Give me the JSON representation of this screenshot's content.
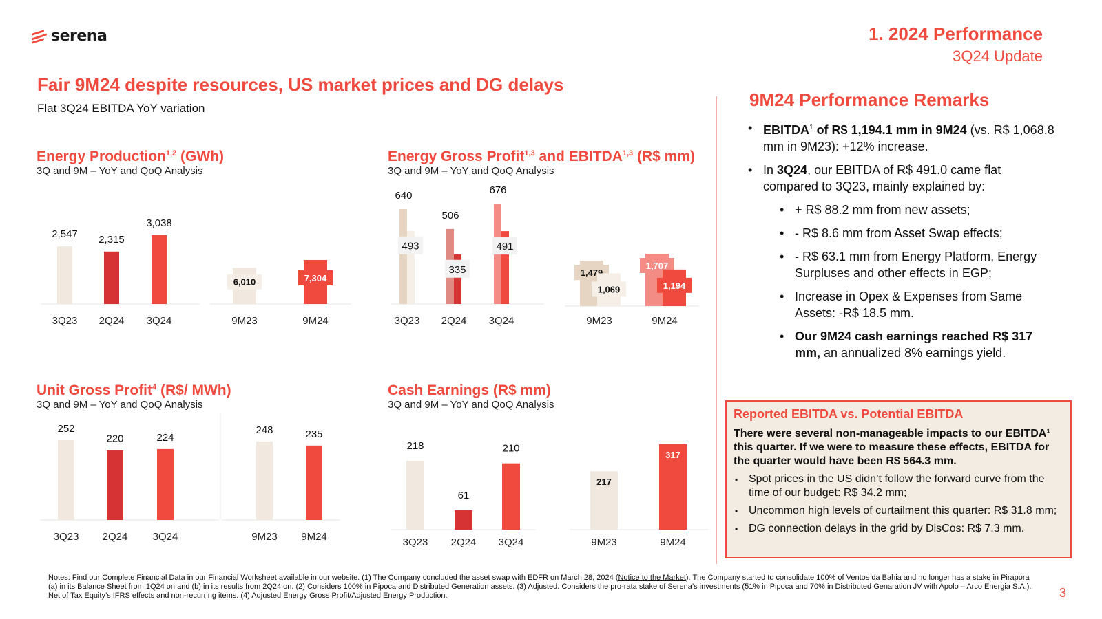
{
  "logo": {
    "text": "serena"
  },
  "section": {
    "title": "1. 2024 Performance",
    "subtitle": "3Q24 Update"
  },
  "headline": "Fair 9M24 despite resources, US market prices and DG delays",
  "subheadline": "Flat 3Q24 EBITDA YoY variation",
  "charts": {
    "energy": {
      "title": "Energy Production",
      "sup": "1,2",
      "title_tail": " (GWh)",
      "subtitle": "3Q and 9M – YoY and QoQ Analysis"
    },
    "gross": {
      "title": "Energy Gross Profit",
      "sup1": "1,3",
      "mid": " and EBITDA",
      "sup2": "1,3",
      "title_tail": " (R$ mm)",
      "subtitle": "3Q and 9M – YoY and QoQ Analysis"
    },
    "unit": {
      "title": "Unit Gross Profit",
      "sup": "4",
      "title_tail": " (R$/ MWh)",
      "subtitle": "3Q and 9M – YoY and QoQ Analysis"
    },
    "cash": {
      "title": "Cash Earnings (R$ mm)",
      "subtitle": "3Q and 9M – YoY and QoQ Analysis"
    }
  },
  "chart_data": [
    {
      "id": "energy",
      "type": "bar",
      "title": "Energy Production (GWh)",
      "groups": [
        {
          "categories": [
            "3Q23",
            "2Q24",
            "3Q24"
          ],
          "values": [
            2547,
            2315,
            3038
          ],
          "labels": [
            "2,547",
            "2,315",
            "3,038"
          ]
        },
        {
          "categories": [
            "9M23",
            "9M24"
          ],
          "values": [
            6010,
            7304
          ],
          "labels": [
            "6,010",
            "7,304"
          ]
        }
      ]
    },
    {
      "id": "gross",
      "type": "bar",
      "title": "Energy Gross Profit and EBITDA (R$ mm)",
      "series": [
        {
          "name": "Energy Gross Profit"
        },
        {
          "name": "EBITDA"
        }
      ],
      "groups": [
        {
          "categories": [
            "3Q23",
            "2Q24",
            "3Q24"
          ],
          "gross_profit": [
            640,
            506,
            676
          ],
          "ebitda": [
            493,
            335,
            491
          ],
          "gp_labels": [
            "640",
            "506",
            "676"
          ],
          "ebitda_labels": [
            "493",
            "335",
            "491"
          ]
        },
        {
          "categories": [
            "9M23",
            "9M24"
          ],
          "gross_profit": [
            1479,
            1707
          ],
          "ebitda": [
            1069,
            1194
          ],
          "gp_labels": [
            "1,479",
            "1,707"
          ],
          "ebitda_labels": [
            "1,069",
            "1,194"
          ]
        }
      ]
    },
    {
      "id": "unit",
      "type": "bar",
      "title": "Unit Gross Profit (R$/ MWh)",
      "groups": [
        {
          "categories": [
            "3Q23",
            "2Q24",
            "3Q24"
          ],
          "values": [
            252,
            220,
            224
          ]
        },
        {
          "categories": [
            "9M23",
            "9M24"
          ],
          "values": [
            248,
            235
          ]
        }
      ]
    },
    {
      "id": "cash",
      "type": "bar",
      "title": "Cash Earnings (R$ mm)",
      "groups": [
        {
          "categories": [
            "3Q23",
            "2Q24",
            "3Q24"
          ],
          "values": [
            218,
            61,
            210
          ]
        },
        {
          "categories": [
            "9M23",
            "9M24"
          ],
          "values": [
            217,
            317
          ]
        }
      ]
    }
  ],
  "colors": {
    "accent": "#f04a3e",
    "beige": "#f1e9df",
    "dark_red": "#d63434",
    "tan": "#e5d5c2",
    "pink": "#f38c85",
    "light_beige": "#f5efe7"
  },
  "remarks": {
    "title": "9M24 Performance Remarks",
    "b1_bold_a": "EBITDA",
    "b1_sup": "1",
    "b1_bold_b": " of R$ 1,194.1 mm in 9M24",
    "b1_rest": " (vs. R$ 1,068.8 mm in 9M23): +12% increase.",
    "b2_a": "In ",
    "b2_bold": "3Q24",
    "b2_rest": ", our EBITDA of R$ 491.0 came flat compared to 3Q23, mainly explained by:",
    "sub1": "+ R$ 88.2 mm from new assets;",
    "sub2": "- R$ 8.6 mm from Asset Swap effects;",
    "sub3": "- R$ 63.1 mm from Energy Platform, Energy Surpluses and other effects in EGP;",
    "sub4": "Increase in Opex & Expenses from Same Assets: -R$ 18.5 mm.",
    "sub5_bold": "Our 9M24 cash earnings reached R$ 317 mm,",
    "sub5_rest": " an annualized 8% earnings yield."
  },
  "box": {
    "title": "Reported EBITDA vs. Potential EBITDA",
    "intro": "There were several non-manageable impacts to our EBITDA¹ this quarter. If we were to measure these effects, EBITDA for the quarter would have been R$ 564.3 mm.",
    "items": [
      "Spot prices in the US didn’t follow the forward curve from the time of our budget: R$ 34.2 mm;",
      "Uncommon high levels of curtailment this quarter: R$ 31.8 mm;",
      "DG connection delays in the grid by DisCos: R$ 7.3 mm."
    ]
  },
  "notes": {
    "a": "Notes:  Find our Complete Financial Data in our Financial Worksheet available in our website. (1) The Company concluded the asset swap with EDFR on March 28, 2024 (",
    "link": "Notice to the Market",
    "b": "). The Company started to consolidate 100% of Ventos da Bahia and no longer has a stake in Pirapora (a) in its Balance Sheet from 1Q24 on and (b) in its results from 2Q24 on. (2) Considers 100% in Pipoca and Distributed Generation assets. (3) Adjusted. Considers the pro-rata stake of Serena’s investments (51% in Pipoca and 70% in Distributed Genaration JV with Apolo – Arco Energia S.A.). Net of Tax Equity’s IFRS effects and non-recurring items. (4) Adjusted Energy Gross Profit/Adjusted Energy Production."
  },
  "page_number": "3"
}
